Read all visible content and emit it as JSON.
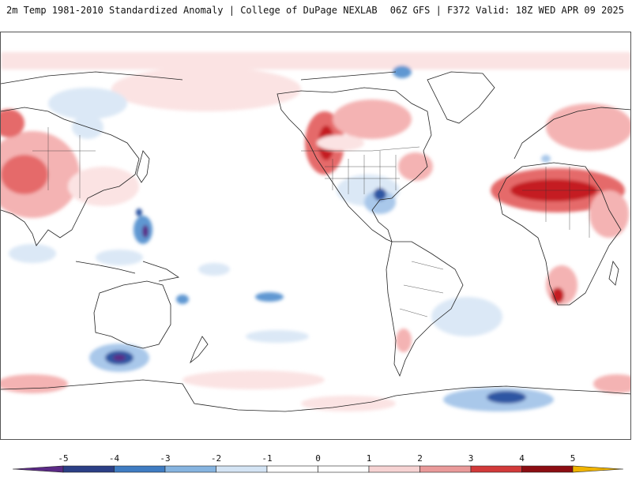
{
  "header": {
    "title_left": "2m Temp 1981-2010 Standardized Anomaly | College of DuPage NEXLAB",
    "title_right": "06Z GFS | F372 Valid: 18Z WED APR 09 2025"
  },
  "colorbar": {
    "ticks": [
      "-5",
      "-4",
      "-3",
      "-2",
      "-1",
      "0",
      "1",
      "2",
      "3",
      "4",
      "5"
    ],
    "colors": [
      "#5b2a86",
      "#2b3f86",
      "#3f7cc2",
      "#86b4e0",
      "#d4e4f4",
      "#ffffff",
      "#ffffff",
      "#f6d3d3",
      "#ea9a9a",
      "#d23a3a",
      "#8c0d12",
      "#f0b400"
    ]
  },
  "map": {
    "warm_colors": [
      "#fbe3e3",
      "#f4b3b3",
      "#e56a6a",
      "#c51f24",
      "#8c0d12"
    ],
    "cold_colors": [
      "#dbe8f6",
      "#a9c8ea",
      "#5f97d2",
      "#2d56a3",
      "#5b2a86"
    ],
    "coast_color": "#222222"
  }
}
